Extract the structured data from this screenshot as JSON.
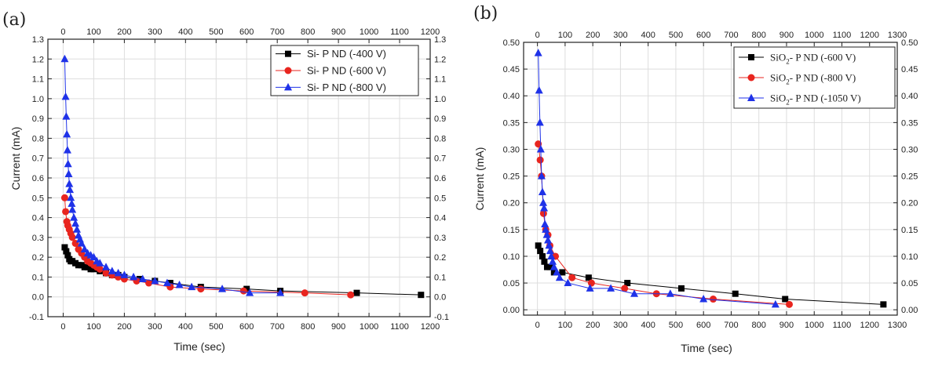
{
  "chart_data": [
    {
      "panel_label": "(a)",
      "type": "line",
      "xlabel": "Time (sec)",
      "ylabel": "Current (mA)",
      "xlim": [
        -50,
        1200
      ],
      "ylim": [
        -0.1,
        1.3
      ],
      "xticks": [
        "0",
        "100",
        "200",
        "300",
        "400",
        "500",
        "600",
        "700",
        "800",
        "900",
        "1000",
        "1100",
        "1200"
      ],
      "yticks": [
        "-0.1",
        "0.0",
        "0.1",
        "0.2",
        "0.3",
        "0.4",
        "0.5",
        "0.6",
        "0.7",
        "0.8",
        "0.9",
        "1.0",
        "1.1",
        "1.2",
        "1.3"
      ],
      "top_axis_mirrored": true,
      "right_axis_mirrored": true,
      "grid": true,
      "legend_position": "top-right",
      "series": [
        {
          "name": "Si- P  ND (-400 V)",
          "color": "#000000",
          "marker": "square",
          "x": [
            5,
            10,
            15,
            20,
            25,
            30,
            40,
            50,
            60,
            70,
            80,
            90,
            100,
            120,
            140,
            160,
            180,
            200,
            250,
            300,
            350,
            450,
            600,
            710,
            960,
            1170
          ],
          "y": [
            0.25,
            0.23,
            0.21,
            0.19,
            0.18,
            0.18,
            0.17,
            0.16,
            0.16,
            0.15,
            0.15,
            0.14,
            0.14,
            0.13,
            0.12,
            0.11,
            0.11,
            0.1,
            0.09,
            0.08,
            0.07,
            0.05,
            0.04,
            0.03,
            0.02,
            0.01
          ]
        },
        {
          "name": "Si- P  ND (-600 V)",
          "color": "#e8251f",
          "marker": "circle",
          "x": [
            5,
            8,
            12,
            15,
            20,
            25,
            30,
            40,
            50,
            60,
            70,
            80,
            90,
            100,
            110,
            120,
            140,
            160,
            180,
            200,
            240,
            280,
            350,
            450,
            590,
            790,
            940
          ],
          "y": [
            0.5,
            0.43,
            0.38,
            0.36,
            0.34,
            0.32,
            0.3,
            0.27,
            0.24,
            0.22,
            0.2,
            0.18,
            0.17,
            0.16,
            0.15,
            0.14,
            0.12,
            0.11,
            0.1,
            0.09,
            0.08,
            0.07,
            0.05,
            0.04,
            0.03,
            0.02,
            0.01
          ]
        },
        {
          "name": "Si- P  ND (-800 V)",
          "color": "#1f32e8",
          "marker": "triangle",
          "x": [
            5,
            8,
            10,
            12,
            14,
            16,
            18,
            20,
            22,
            25,
            28,
            30,
            35,
            40,
            45,
            50,
            55,
            60,
            70,
            80,
            90,
            100,
            110,
            120,
            140,
            160,
            180,
            200,
            230,
            260,
            300,
            340,
            380,
            420,
            520,
            610,
            710
          ],
          "y": [
            1.2,
            1.01,
            0.91,
            0.82,
            0.74,
            0.67,
            0.62,
            0.57,
            0.54,
            0.5,
            0.47,
            0.44,
            0.4,
            0.37,
            0.34,
            0.31,
            0.29,
            0.27,
            0.24,
            0.22,
            0.21,
            0.2,
            0.18,
            0.17,
            0.15,
            0.13,
            0.12,
            0.11,
            0.1,
            0.09,
            0.08,
            0.07,
            0.06,
            0.05,
            0.04,
            0.02,
            0.02
          ]
        }
      ]
    },
    {
      "panel_label": "(b)",
      "type": "line",
      "xlabel": "Time (sec)",
      "ylabel": "Current (mA)",
      "xlim": [
        -50,
        1300
      ],
      "ylim": [
        -0.01,
        0.5
      ],
      "xticks": [
        "0",
        "100",
        "200",
        "300",
        "400",
        "500",
        "600",
        "700",
        "800",
        "900",
        "1000",
        "1100",
        "1200",
        "1300"
      ],
      "yticks": [
        "0.00",
        "0.05",
        "0.10",
        "0.15",
        "0.20",
        "0.25",
        "0.30",
        "0.35",
        "0.40",
        "0.45",
        "0.50"
      ],
      "top_axis_mirrored": true,
      "right_axis_mirrored": true,
      "grid": true,
      "legend_position": "top-right",
      "series": [
        {
          "name_prefix": "SiO",
          "name_sub": "2",
          "name_suffix": "- P  ND (-600 V)",
          "color": "#000000",
          "marker": "square",
          "x": [
            3,
            10,
            18,
            25,
            35,
            45,
            60,
            90,
            185,
            325,
            520,
            715,
            895,
            1250
          ],
          "y": [
            0.12,
            0.11,
            0.1,
            0.09,
            0.08,
            0.08,
            0.07,
            0.07,
            0.06,
            0.05,
            0.04,
            0.03,
            0.02,
            0.01
          ]
        },
        {
          "name_prefix": "SiO",
          "name_sub": "2",
          "name_suffix": "- P  ND (-800 V)",
          "color": "#e8251f",
          "marker": "circle",
          "x": [
            3,
            10,
            15,
            22,
            30,
            38,
            45,
            65,
            125,
            195,
            315,
            430,
            635,
            910
          ],
          "y": [
            0.31,
            0.28,
            0.25,
            0.18,
            0.15,
            0.14,
            0.12,
            0.1,
            0.06,
            0.05,
            0.04,
            0.03,
            0.02,
            0.01
          ]
        },
        {
          "name_prefix": "SiO",
          "name_sub": "2",
          "name_suffix": "- P  ND (-1050 V)",
          "color": "#1f32e8",
          "marker": "triangle",
          "x": [
            3,
            6,
            9,
            12,
            15,
            18,
            21,
            24,
            27,
            30,
            34,
            38,
            42,
            46,
            50,
            55,
            60,
            70,
            80,
            110,
            190,
            265,
            350,
            480,
            600,
            860
          ],
          "y": [
            0.48,
            0.41,
            0.35,
            0.3,
            0.25,
            0.22,
            0.2,
            0.19,
            0.16,
            0.15,
            0.14,
            0.13,
            0.12,
            0.11,
            0.1,
            0.09,
            0.08,
            0.07,
            0.06,
            0.05,
            0.04,
            0.04,
            0.03,
            0.03,
            0.02,
            0.01
          ]
        }
      ]
    }
  ]
}
